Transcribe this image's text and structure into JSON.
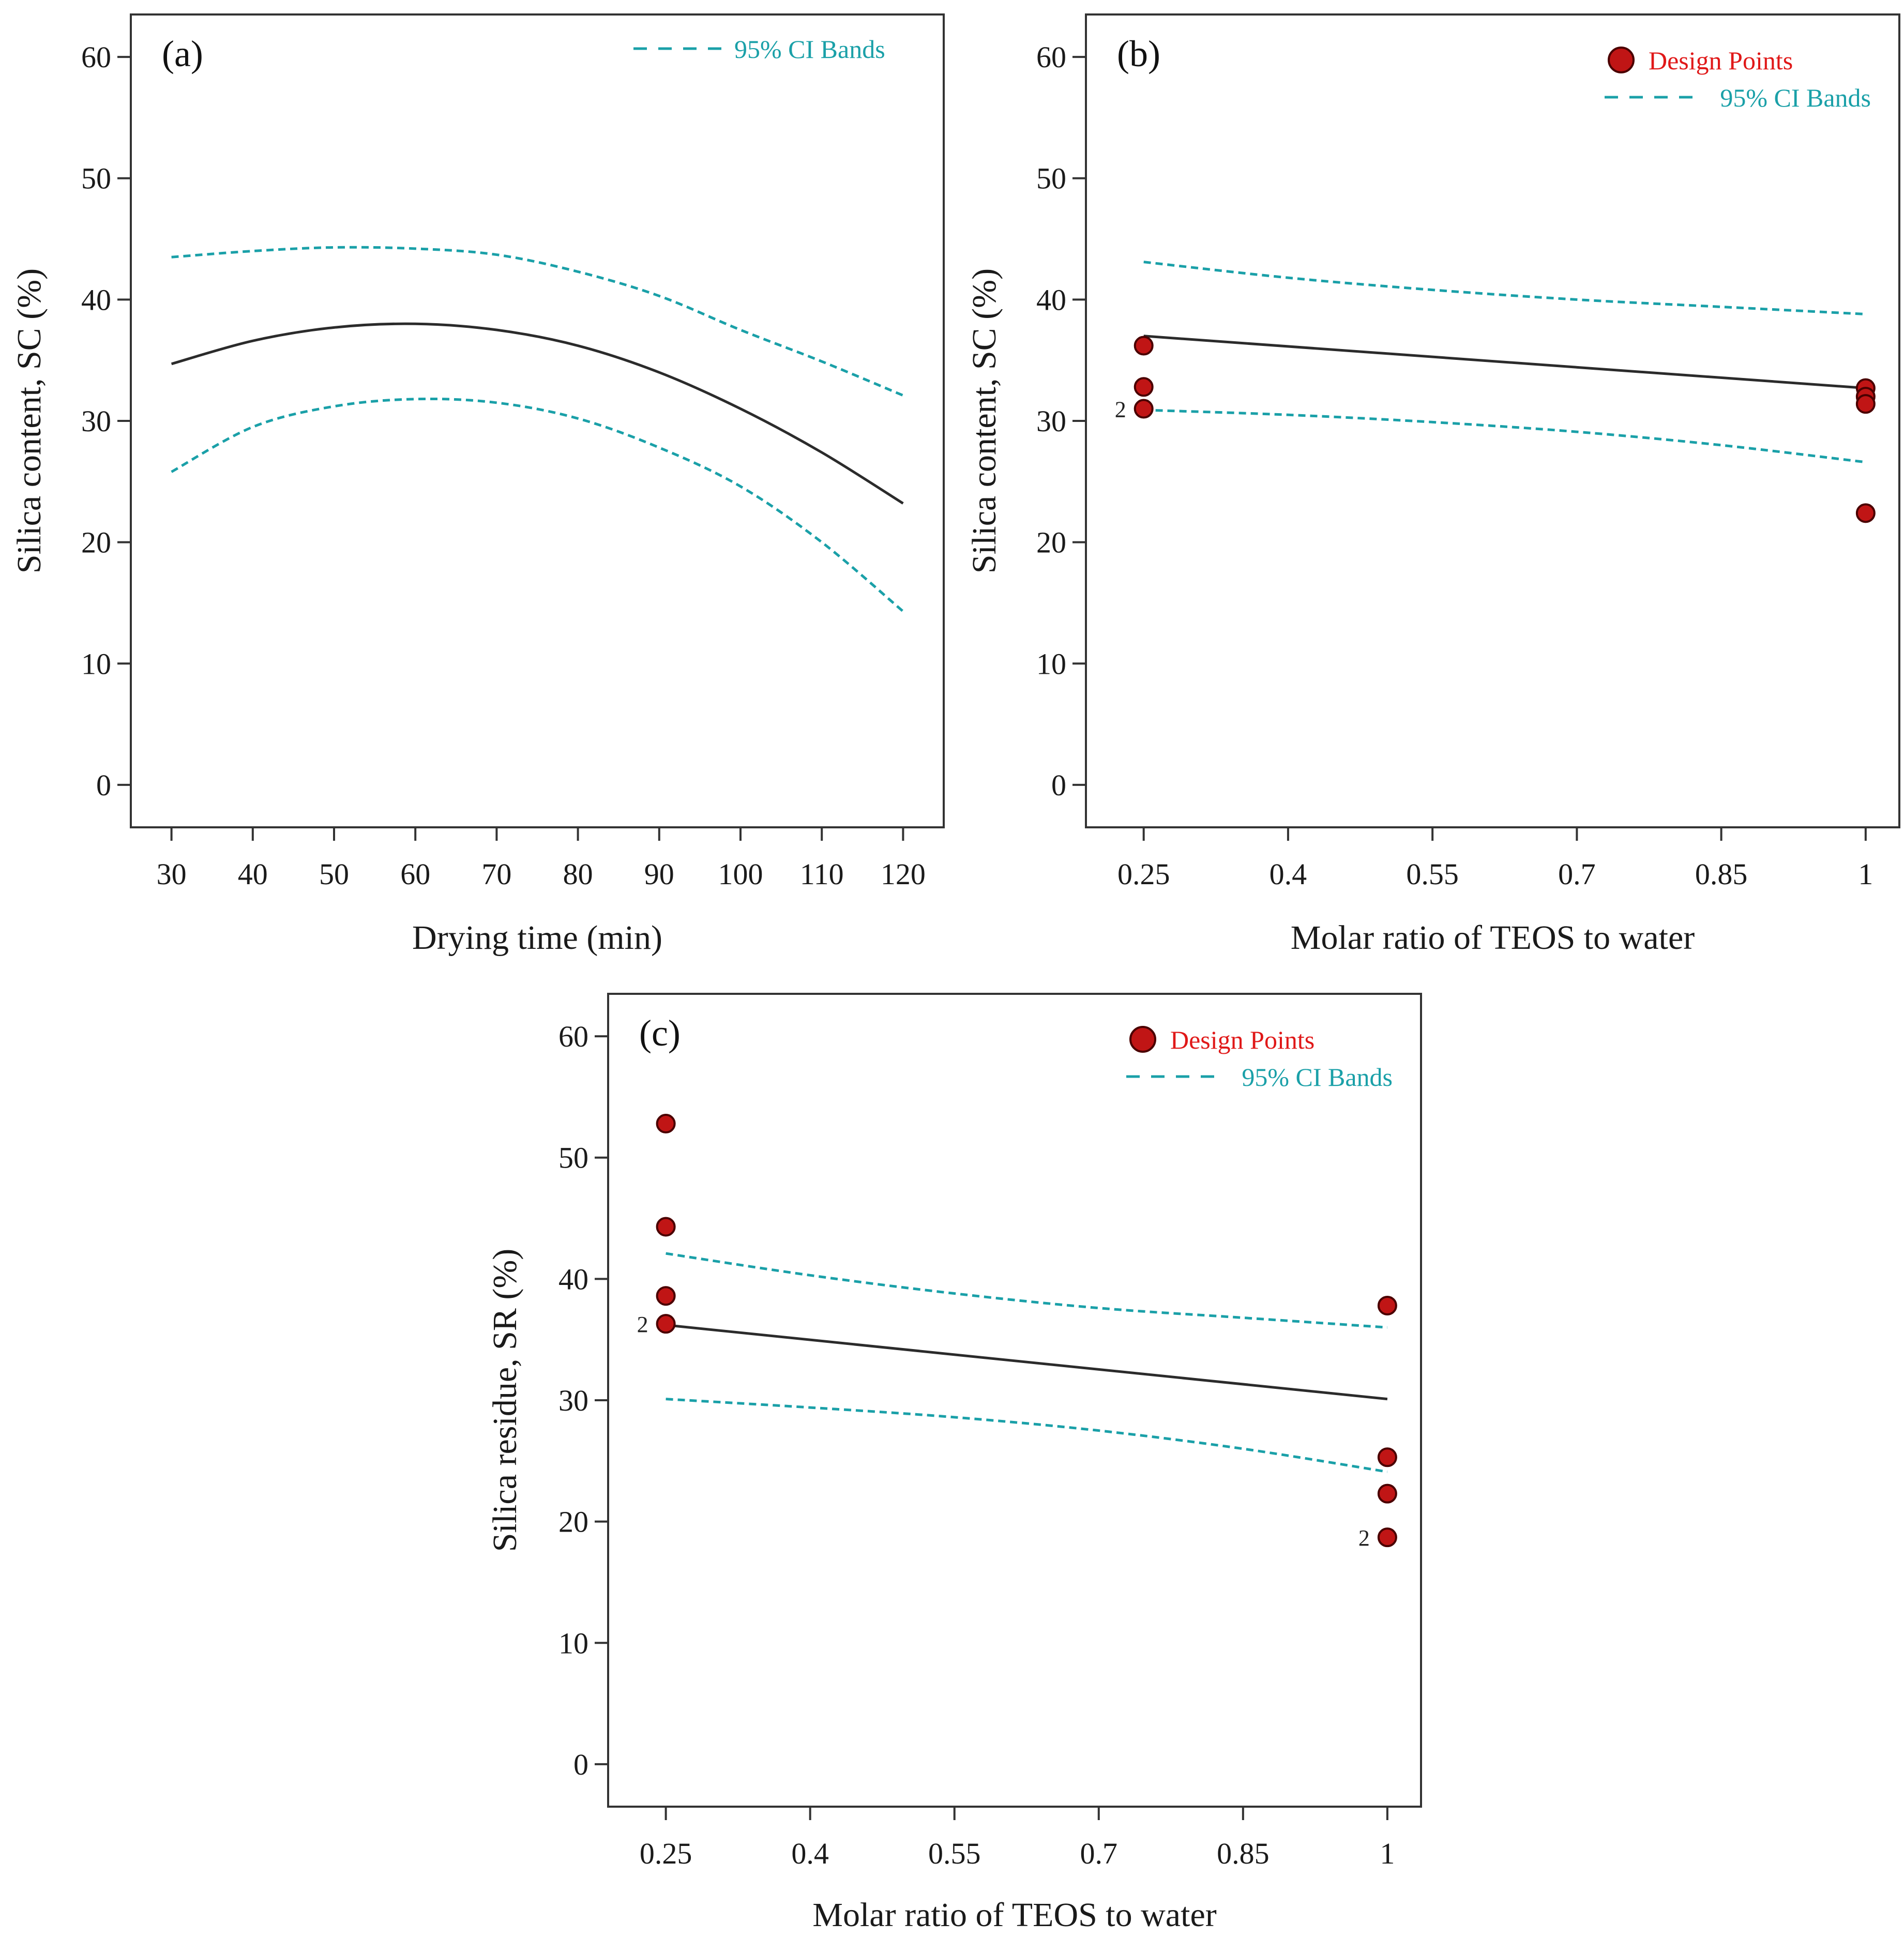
{
  "colors": {
    "fit": "#2b2b2b",
    "ci": "#1aa0a8",
    "point_fill": "#c01515",
    "point_edge": "#4a0000",
    "legend_points": "#e01818",
    "legend_ci": "#1aa0a8",
    "axes": "#333333"
  },
  "chart_data": [
    {
      "id": "a",
      "type": "line",
      "panel_label": "(a)",
      "xlabel": "Drying time (min)",
      "ylabel": "Silica content, SC (%)",
      "xlim": [
        25,
        125
      ],
      "ylim": [
        -3.5,
        63.5
      ],
      "xticks": [
        30,
        40,
        50,
        60,
        70,
        80,
        90,
        100,
        110,
        120
      ],
      "xtick_labels": [
        "30",
        "40",
        "50",
        "60",
        "70",
        "80",
        "90",
        "100",
        "110",
        "120"
      ],
      "yticks": [
        0,
        10,
        20,
        30,
        40,
        50,
        60
      ],
      "ytick_labels": [
        "0",
        "10",
        "20",
        "30",
        "40",
        "50",
        "60"
      ],
      "legend": {
        "ci": "95% CI Bands"
      },
      "fit": {
        "x": [
          30,
          40,
          50,
          60,
          70,
          80,
          90,
          100,
          110,
          120
        ],
        "y": [
          34.7,
          36.6,
          37.7,
          38.0,
          37.5,
          36.2,
          34.0,
          31.0,
          27.4,
          23.2
        ]
      },
      "ci_upper": {
        "x": [
          30,
          40,
          50,
          60,
          70,
          80,
          90,
          100,
          110,
          120
        ],
        "y": [
          43.5,
          44.0,
          44.3,
          44.2,
          43.7,
          42.3,
          40.3,
          37.5,
          34.9,
          32.1
        ]
      },
      "ci_lower": {
        "x": [
          30,
          40,
          50,
          60,
          70,
          80,
          90,
          100,
          110,
          120
        ],
        "y": [
          25.8,
          29.5,
          31.2,
          31.8,
          31.5,
          30.2,
          27.8,
          24.6,
          20.0,
          14.3
        ]
      },
      "points": []
    },
    {
      "id": "b",
      "type": "line",
      "panel_label": "(b)",
      "xlabel": "Molar ratio of TEOS to water",
      "ylabel": "Silica content, SC (%)",
      "xlim": [
        0.19,
        1.035
      ],
      "ylim": [
        -3.5,
        63.5
      ],
      "xticks": [
        0.25,
        0.4,
        0.55,
        0.7,
        0.85,
        1
      ],
      "xtick_labels": [
        "0.25",
        "0.4",
        "0.55",
        "0.7",
        "0.85",
        "1"
      ],
      "yticks": [
        0,
        10,
        20,
        30,
        40,
        50,
        60
      ],
      "ytick_labels": [
        "0",
        "10",
        "20",
        "30",
        "40",
        "50",
        "60"
      ],
      "legend": {
        "points": "Design Points",
        "ci": "95% CI Bands"
      },
      "fit": {
        "x": [
          0.25,
          1.0
        ],
        "y": [
          37.0,
          32.7
        ]
      },
      "ci_upper": {
        "x": [
          0.25,
          0.4,
          0.55,
          0.7,
          0.85,
          1.0
        ],
        "y": [
          43.1,
          41.8,
          40.8,
          40.0,
          39.4,
          38.8
        ]
      },
      "ci_lower": {
        "x": [
          0.25,
          0.4,
          0.55,
          0.7,
          0.85,
          1.0
        ],
        "y": [
          30.9,
          30.5,
          29.9,
          29.1,
          28.0,
          26.6
        ]
      },
      "points": [
        {
          "x": 0.25,
          "y": 36.2
        },
        {
          "x": 0.25,
          "y": 32.8
        },
        {
          "x": 0.25,
          "y": 31.0,
          "count": "2"
        },
        {
          "x": 1.0,
          "y": 32.7
        },
        {
          "x": 1.0,
          "y": 32.0
        },
        {
          "x": 1.0,
          "y": 31.4
        },
        {
          "x": 1.0,
          "y": 22.4
        }
      ]
    },
    {
      "id": "c",
      "type": "line",
      "panel_label": "(c)",
      "xlabel": "Molar ratio of TEOS to water",
      "ylabel": "Silica residue, SR (%)",
      "xlim": [
        0.19,
        1.035
      ],
      "ylim": [
        -3.5,
        63.5
      ],
      "xticks": [
        0.25,
        0.4,
        0.55,
        0.7,
        0.85,
        1
      ],
      "xtick_labels": [
        "0.25",
        "0.4",
        "0.55",
        "0.7",
        "0.85",
        "1"
      ],
      "yticks": [
        0,
        10,
        20,
        30,
        40,
        50,
        60
      ],
      "ytick_labels": [
        "0",
        "10",
        "20",
        "30",
        "40",
        "50",
        "60"
      ],
      "legend": {
        "points": "Design Points",
        "ci": "95% CI Bands"
      },
      "fit": {
        "x": [
          0.25,
          1.0
        ],
        "y": [
          36.2,
          30.1
        ]
      },
      "ci_upper": {
        "x": [
          0.25,
          0.4,
          0.55,
          0.7,
          0.85,
          1.0
        ],
        "y": [
          42.1,
          40.3,
          38.8,
          37.6,
          36.8,
          36.0
        ]
      },
      "ci_lower": {
        "x": [
          0.25,
          0.4,
          0.55,
          0.7,
          0.85,
          1.0
        ],
        "y": [
          30.1,
          29.4,
          28.6,
          27.5,
          26.0,
          24.1
        ]
      },
      "points": [
        {
          "x": 0.25,
          "y": 52.8
        },
        {
          "x": 0.25,
          "y": 44.3
        },
        {
          "x": 0.25,
          "y": 38.6
        },
        {
          "x": 0.25,
          "y": 36.3,
          "count": "2"
        },
        {
          "x": 1.0,
          "y": 37.8
        },
        {
          "x": 1.0,
          "y": 25.3
        },
        {
          "x": 1.0,
          "y": 22.3
        },
        {
          "x": 1.0,
          "y": 18.7,
          "count": "2"
        }
      ]
    }
  ]
}
